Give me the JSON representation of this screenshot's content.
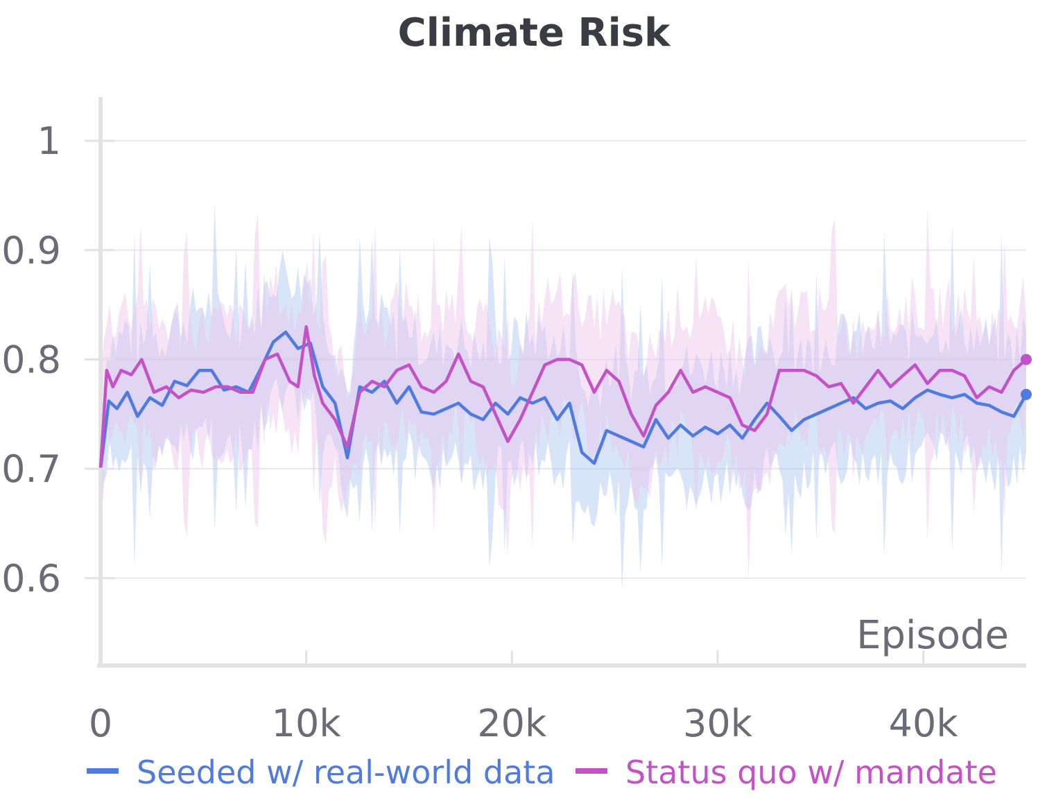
{
  "chart_data": {
    "type": "line",
    "title": "Climate Risk",
    "xlabel": "Episode",
    "ylabel": "",
    "xlim": [
      0,
      45000
    ],
    "ylim": [
      0.52,
      1.04
    ],
    "xticks": [
      0,
      10000,
      20000,
      30000,
      40000
    ],
    "xtick_labels": [
      "0",
      "10k",
      "20k",
      "30k",
      "40k"
    ],
    "yticks": [
      0.6,
      0.7,
      0.8,
      0.9,
      1.0
    ],
    "ytick_labels": [
      "0.6",
      "0.7",
      "0.8",
      "0.9",
      "1"
    ],
    "grid": true,
    "legend_position": "bottom",
    "series": [
      {
        "name": "Seeded w/ real-world data",
        "color": "#4f7be0",
        "band_color": "#a9c4f0",
        "x": [
          0,
          400,
          800,
          1300,
          1800,
          2400,
          3000,
          3600,
          4200,
          4800,
          5400,
          6000,
          6600,
          7200,
          7800,
          8400,
          9000,
          9600,
          10200,
          10800,
          11400,
          12000,
          12600,
          13200,
          13800,
          14400,
          15000,
          15600,
          16200,
          16800,
          17400,
          18000,
          18600,
          19200,
          19800,
          20400,
          21000,
          21600,
          22200,
          22800,
          23400,
          24000,
          24600,
          25200,
          25800,
          26400,
          27000,
          27600,
          28200,
          28800,
          29400,
          30000,
          30600,
          31200,
          31800,
          32400,
          33000,
          33600,
          34200,
          34800,
          35400,
          36000,
          36600,
          37200,
          37800,
          38400,
          39000,
          39600,
          40200,
          40800,
          41400,
          42000,
          42600,
          43200,
          43800,
          44400,
          45000
        ],
        "y": [
          0.7,
          0.762,
          0.755,
          0.77,
          0.748,
          0.765,
          0.758,
          0.78,
          0.776,
          0.79,
          0.79,
          0.772,
          0.775,
          0.77,
          0.792,
          0.816,
          0.825,
          0.81,
          0.815,
          0.775,
          0.76,
          0.71,
          0.775,
          0.77,
          0.78,
          0.76,
          0.775,
          0.752,
          0.75,
          0.755,
          0.76,
          0.75,
          0.745,
          0.76,
          0.75,
          0.765,
          0.76,
          0.765,
          0.745,
          0.76,
          0.715,
          0.705,
          0.735,
          0.73,
          0.725,
          0.72,
          0.745,
          0.728,
          0.74,
          0.73,
          0.738,
          0.732,
          0.74,
          0.728,
          0.745,
          0.76,
          0.748,
          0.735,
          0.745,
          0.75,
          0.755,
          0.76,
          0.765,
          0.755,
          0.76,
          0.762,
          0.755,
          0.765,
          0.772,
          0.768,
          0.765,
          0.768,
          0.76,
          0.758,
          0.752,
          0.748,
          0.768
        ]
      },
      {
        "name": "Status quo w/ mandate",
        "color": "#c252c6",
        "band_color": "#ecc4ea",
        "x": [
          0,
          300,
          600,
          1000,
          1500,
          2000,
          2600,
          3200,
          3800,
          4400,
          5000,
          5600,
          6200,
          6800,
          7400,
          8000,
          8600,
          9200,
          9600,
          10000,
          10400,
          10800,
          11400,
          12000,
          12600,
          13200,
          13800,
          14400,
          15000,
          15600,
          16200,
          16800,
          17400,
          18000,
          18600,
          19200,
          19800,
          20400,
          21000,
          21600,
          22200,
          22800,
          23400,
          24000,
          24600,
          25200,
          25800,
          26400,
          27000,
          27600,
          28200,
          28800,
          29400,
          30000,
          30600,
          31200,
          31800,
          32400,
          33000,
          33600,
          34200,
          34800,
          35400,
          36000,
          36600,
          37200,
          37800,
          38400,
          39000,
          39600,
          40200,
          40800,
          41400,
          42000,
          42600,
          43200,
          43800,
          44400,
          45000
        ],
        "y": [
          0.7,
          0.79,
          0.775,
          0.79,
          0.786,
          0.8,
          0.77,
          0.775,
          0.765,
          0.772,
          0.77,
          0.775,
          0.775,
          0.77,
          0.77,
          0.8,
          0.805,
          0.78,
          0.775,
          0.83,
          0.785,
          0.76,
          0.745,
          0.72,
          0.77,
          0.78,
          0.775,
          0.79,
          0.795,
          0.775,
          0.77,
          0.78,
          0.805,
          0.78,
          0.775,
          0.75,
          0.725,
          0.745,
          0.77,
          0.795,
          0.8,
          0.8,
          0.795,
          0.77,
          0.79,
          0.78,
          0.75,
          0.73,
          0.758,
          0.77,
          0.79,
          0.77,
          0.775,
          0.77,
          0.765,
          0.74,
          0.735,
          0.75,
          0.79,
          0.79,
          0.79,
          0.785,
          0.775,
          0.778,
          0.76,
          0.775,
          0.79,
          0.775,
          0.785,
          0.795,
          0.778,
          0.79,
          0.79,
          0.785,
          0.765,
          0.775,
          0.77,
          0.79,
          0.8
        ]
      }
    ]
  }
}
